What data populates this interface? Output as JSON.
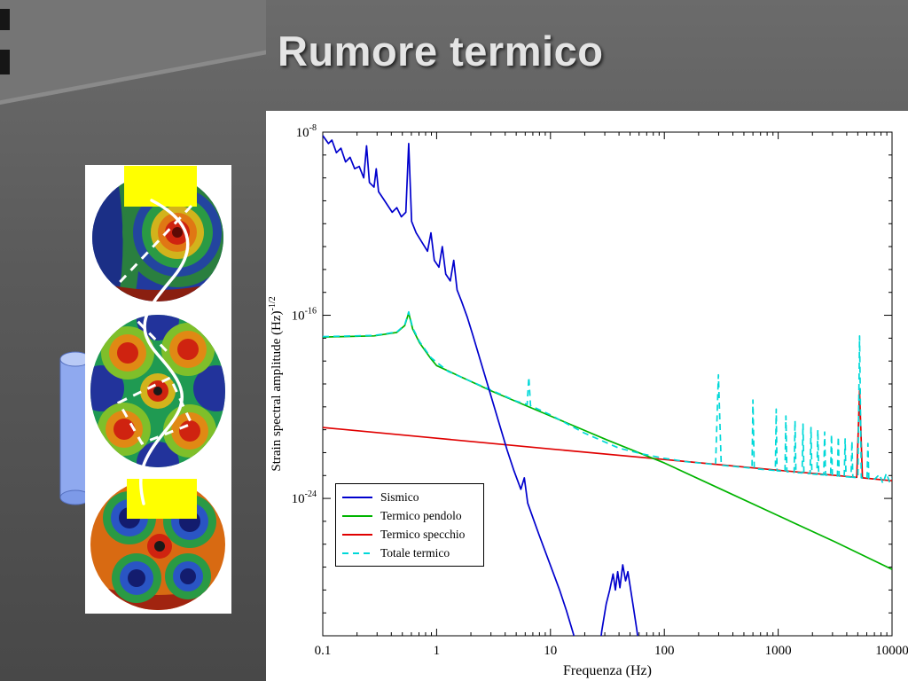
{
  "slide": {
    "title": "Rumore termico"
  },
  "chart_data": {
    "type": "line",
    "title": "",
    "xlabel": "Frequenza (Hz)",
    "ylabel": {
      "text": "Strain spectral amplitude (Hz)",
      "sup": "-1/2"
    },
    "x_scale": "log",
    "y_scale": "log",
    "xlim": [
      0.1,
      10000
    ],
    "ylim": [
      1e-30,
      1e-08
    ],
    "grid": false,
    "legend_position": "lower-left",
    "x_ticks": [
      {
        "value": 0.1,
        "label": "0.1"
      },
      {
        "value": 1,
        "label": "1"
      },
      {
        "value": 10,
        "label": "10"
      },
      {
        "value": 100,
        "label": "100"
      },
      {
        "value": 1000,
        "label": "1000"
      },
      {
        "value": 10000,
        "label": "10000"
      }
    ],
    "y_ticks": [
      {
        "exp": -8,
        "base": "10",
        "sup": "-8"
      },
      {
        "exp": -16,
        "base": "10",
        "sup": "-16"
      },
      {
        "exp": -24,
        "base": "10",
        "sup": "-24"
      }
    ],
    "points_format": "[log10(frequency Hz), log10(strain amplitude)]",
    "series": [
      {
        "name": "Sismico",
        "color": "#0000cd",
        "dash": "solid",
        "points": [
          [
            -1,
            -8.15
          ],
          [
            -0.95,
            -8.5
          ],
          [
            -0.92,
            -8.35
          ],
          [
            -0.88,
            -8.9
          ],
          [
            -0.84,
            -8.7
          ],
          [
            -0.8,
            -9.3
          ],
          [
            -0.76,
            -9.1
          ],
          [
            -0.72,
            -9.6
          ],
          [
            -0.68,
            -9.5
          ],
          [
            -0.64,
            -10
          ],
          [
            -0.615,
            -8.6
          ],
          [
            -0.59,
            -10.2
          ],
          [
            -0.55,
            -10.4
          ],
          [
            -0.53,
            -9.6
          ],
          [
            -0.51,
            -10.6
          ],
          [
            -0.47,
            -10.9
          ],
          [
            -0.43,
            -11.2
          ],
          [
            -0.39,
            -11.5
          ],
          [
            -0.35,
            -11.3
          ],
          [
            -0.31,
            -11.7
          ],
          [
            -0.27,
            -11.5
          ],
          [
            -0.245,
            -8.5
          ],
          [
            -0.22,
            -11.9
          ],
          [
            -0.18,
            -12.4
          ],
          [
            -0.13,
            -12.8
          ],
          [
            -0.08,
            -13.2
          ],
          [
            -0.05,
            -12.4
          ],
          [
            -0.02,
            -13.6
          ],
          [
            0.02,
            -13.9
          ],
          [
            0.05,
            -13
          ],
          [
            0.08,
            -14.2
          ],
          [
            0.12,
            -14.5
          ],
          [
            0.15,
            -13.6
          ],
          [
            0.18,
            -14.9
          ],
          [
            0.22,
            -15.4
          ],
          [
            0.27,
            -16.1
          ],
          [
            0.32,
            -16.9
          ],
          [
            0.38,
            -17.9
          ],
          [
            0.44,
            -18.9
          ],
          [
            0.5,
            -19.9
          ],
          [
            0.56,
            -20.9
          ],
          [
            0.62,
            -21.9
          ],
          [
            0.68,
            -22.8
          ],
          [
            0.74,
            -23.6
          ],
          [
            0.77,
            -23.1
          ],
          [
            0.8,
            -24.2
          ],
          [
            0.85,
            -24.9
          ],
          [
            0.9,
            -25.6
          ],
          [
            0.96,
            -26.4
          ],
          [
            1.02,
            -27.2
          ],
          [
            1.08,
            -28
          ],
          [
            1.14,
            -28.9
          ],
          [
            1.2,
            -29.9
          ],
          [
            1.26,
            -31
          ],
          [
            1.32,
            -32
          ],
          [
            1.4,
            -32
          ],
          [
            1.45,
            -29.8
          ],
          [
            1.49,
            -28.6
          ],
          [
            1.52,
            -28
          ],
          [
            1.55,
            -27.3
          ],
          [
            1.57,
            -28
          ],
          [
            1.59,
            -27.2
          ],
          [
            1.61,
            -27.9
          ],
          [
            1.635,
            -26.9
          ],
          [
            1.66,
            -27.6
          ],
          [
            1.68,
            -27.2
          ],
          [
            1.705,
            -28
          ],
          [
            1.73,
            -28.8
          ],
          [
            1.76,
            -29.8
          ],
          [
            1.79,
            -31
          ],
          [
            1.82,
            -32.5
          ]
        ]
      },
      {
        "name": "Termico pendolo",
        "color": "#00b400",
        "dash": "solid",
        "points": [
          [
            -1,
            -16.95
          ],
          [
            -0.55,
            -16.9
          ],
          [
            -0.35,
            -16.75
          ],
          [
            -0.28,
            -16.45
          ],
          [
            -0.245,
            -15.9
          ],
          [
            -0.21,
            -16.6
          ],
          [
            -0.15,
            -17.2
          ],
          [
            -0.05,
            -17.9
          ],
          [
            0,
            -18.2
          ],
          [
            0.5,
            -19.35
          ],
          [
            1,
            -20.4
          ],
          [
            1.5,
            -21.45
          ],
          [
            2,
            -22.45
          ],
          [
            2.5,
            -23.6
          ],
          [
            3,
            -24.75
          ],
          [
            3.5,
            -25.9
          ],
          [
            4,
            -27.1
          ]
        ]
      },
      {
        "name": "Termico specchio",
        "color": "#e00000",
        "dash": "solid",
        "points": [
          [
            -1,
            -20.9
          ],
          [
            0,
            -21.37
          ],
          [
            1,
            -21.84
          ],
          [
            2,
            -22.3
          ],
          [
            3,
            -22.77
          ],
          [
            3.69,
            -23.08
          ],
          [
            3.715,
            -19.3
          ],
          [
            3.74,
            -23.1
          ],
          [
            4,
            -23.23
          ]
        ]
      },
      {
        "name": "Totale termico",
        "color": "#00d8d8",
        "dash": "dashed",
        "points": [
          [
            -1,
            -16.93
          ],
          [
            -0.55,
            -16.88
          ],
          [
            -0.35,
            -16.73
          ],
          [
            -0.28,
            -16.42
          ],
          [
            -0.245,
            -15.85
          ],
          [
            -0.21,
            -16.55
          ],
          [
            -0.15,
            -17.15
          ],
          [
            -0.05,
            -17.85
          ],
          [
            0.1,
            -18.45
          ],
          [
            0.4,
            -19.1
          ],
          [
            0.7,
            -19.75
          ],
          [
            0.795,
            -19.9
          ],
          [
            0.81,
            -18.7
          ],
          [
            0.825,
            -19.95
          ],
          [
            1,
            -20.35
          ],
          [
            1.3,
            -21.15
          ],
          [
            1.6,
            -21.8
          ],
          [
            1.8,
            -22.05
          ],
          [
            2,
            -22.25
          ],
          [
            2.2,
            -22.4
          ],
          [
            2.45,
            -22.52
          ],
          [
            2.475,
            -18.6
          ],
          [
            2.5,
            -22.55
          ],
          [
            2.65,
            -22.62
          ],
          [
            2.77,
            -22.68
          ],
          [
            2.778,
            -19.7
          ],
          [
            2.79,
            -22.7
          ],
          [
            2.9,
            -22.75
          ],
          [
            2.975,
            -22.78
          ],
          [
            2.983,
            -20.1
          ],
          [
            2.99,
            -22.79
          ],
          [
            3.06,
            -22.82
          ],
          [
            3.068,
            -20.4
          ],
          [
            3.076,
            -22.83
          ],
          [
            3.14,
            -22.86
          ],
          [
            3.148,
            -20.6
          ],
          [
            3.156,
            -22.87
          ],
          [
            3.21,
            -22.89
          ],
          [
            3.218,
            -20.75
          ],
          [
            3.226,
            -22.9
          ],
          [
            3.28,
            -22.92
          ],
          [
            3.288,
            -20.9
          ],
          [
            3.296,
            -22.93
          ],
          [
            3.34,
            -22.95
          ],
          [
            3.348,
            -21
          ],
          [
            3.356,
            -22.96
          ],
          [
            3.4,
            -22.97
          ],
          [
            3.408,
            -21.1
          ],
          [
            3.416,
            -22.98
          ],
          [
            3.46,
            -22.99
          ],
          [
            3.468,
            -21.2
          ],
          [
            3.476,
            -23
          ],
          [
            3.52,
            -23.02
          ],
          [
            3.528,
            -21.3
          ],
          [
            3.536,
            -23.03
          ],
          [
            3.58,
            -23.04
          ],
          [
            3.588,
            -21.4
          ],
          [
            3.596,
            -23.05
          ],
          [
            3.64,
            -23.07
          ],
          [
            3.648,
            -21.5
          ],
          [
            3.656,
            -23.08
          ],
          [
            3.7,
            -23.09
          ],
          [
            3.715,
            -16.9
          ],
          [
            3.73,
            -23.1
          ],
          [
            3.78,
            -23.12
          ],
          [
            3.788,
            -21.6
          ],
          [
            3.796,
            -23.13
          ],
          [
            3.85,
            -23.15
          ],
          [
            3.89,
            -22.95
          ],
          [
            3.92,
            -23.35
          ],
          [
            3.95,
            -22.9
          ],
          [
            3.98,
            -23.3
          ],
          [
            4,
            -23.1
          ]
        ]
      }
    ]
  }
}
